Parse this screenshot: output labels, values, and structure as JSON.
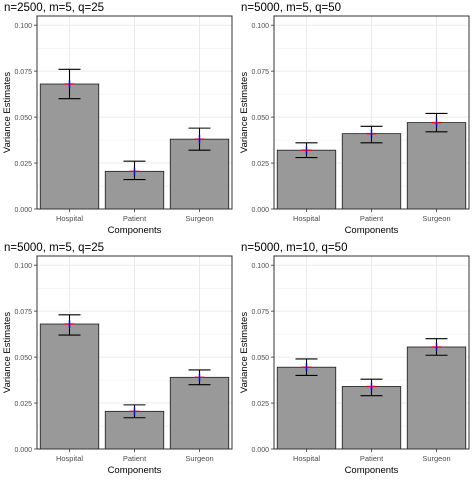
{
  "colors": {
    "bar_fill": "#999999",
    "bar_stroke": "#1a1a1a",
    "panel_bg": "#ffffff",
    "grid": "#ebebeb",
    "errorbar": "#000000",
    "estimate_horizontal": "#ff0000",
    "estimate_vertical": "#0000ff",
    "text": "#000000",
    "tick_text": "#4d4d4d"
  },
  "chart_data": [
    {
      "type": "bar",
      "title": "n=2500, m=5, q=25",
      "xlabel": "Components",
      "ylabel": "Variance Estimates",
      "categories": [
        "Hospital",
        "Patient",
        "Surgeon"
      ],
      "values": [
        0.068,
        0.0205,
        0.038
      ],
      "error_low": [
        0.06,
        0.016,
        0.032
      ],
      "error_high": [
        0.076,
        0.026,
        0.044
      ],
      "ylim": [
        0,
        0.105
      ],
      "yticks": [
        "0.000",
        "0.025",
        "0.050",
        "0.075",
        "0.100"
      ],
      "grid": true
    },
    {
      "type": "bar",
      "title": "n=5000, m=5, q=50",
      "xlabel": "Components",
      "ylabel": "Variance Estimates",
      "categories": [
        "Hospital",
        "Patient",
        "Surgeon"
      ],
      "values": [
        0.032,
        0.041,
        0.047
      ],
      "error_low": [
        0.028,
        0.036,
        0.042
      ],
      "error_high": [
        0.036,
        0.045,
        0.052
      ],
      "ylim": [
        0,
        0.105
      ],
      "yticks": [
        "0.000",
        "0.025",
        "0.050",
        "0.075",
        "0.100"
      ],
      "grid": true
    },
    {
      "type": "bar",
      "title": "n=5000, m=5, q=25",
      "xlabel": "Components",
      "ylabel": "Variance Estimates",
      "categories": [
        "Hospital",
        "Patient",
        "Surgeon"
      ],
      "values": [
        0.068,
        0.0205,
        0.039
      ],
      "error_low": [
        0.062,
        0.017,
        0.035
      ],
      "error_high": [
        0.073,
        0.024,
        0.043
      ],
      "ylim": [
        0,
        0.105
      ],
      "yticks": [
        "0.000",
        "0.025",
        "0.050",
        "0.075",
        "0.100"
      ],
      "grid": true
    },
    {
      "type": "bar",
      "title": "n=5000, m=10, q=50",
      "xlabel": "Components",
      "ylabel": "Variance Estimates",
      "categories": [
        "Hospital",
        "Patient",
        "Surgeon"
      ],
      "values": [
        0.0445,
        0.034,
        0.0555
      ],
      "error_low": [
        0.04,
        0.029,
        0.051
      ],
      "error_high": [
        0.049,
        0.038,
        0.06
      ],
      "ylim": [
        0,
        0.105
      ],
      "yticks": [
        "0.000",
        "0.025",
        "0.050",
        "0.075",
        "0.100"
      ],
      "grid": true
    }
  ]
}
